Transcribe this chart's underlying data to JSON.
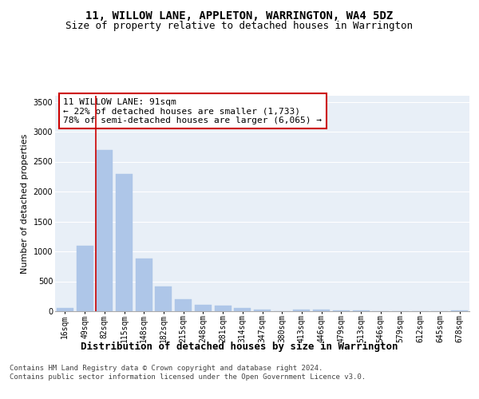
{
  "title": "11, WILLOW LANE, APPLETON, WARRINGTON, WA4 5DZ",
  "subtitle": "Size of property relative to detached houses in Warrington",
  "xlabel": "Distribution of detached houses by size in Warrington",
  "ylabel": "Number of detached properties",
  "categories": [
    "16sqm",
    "49sqm",
    "82sqm",
    "115sqm",
    "148sqm",
    "182sqm",
    "215sqm",
    "248sqm",
    "281sqm",
    "314sqm",
    "347sqm",
    "380sqm",
    "413sqm",
    "446sqm",
    "479sqm",
    "513sqm",
    "546sqm",
    "579sqm",
    "612sqm",
    "645sqm",
    "678sqm"
  ],
  "values": [
    50,
    1090,
    2700,
    2290,
    880,
    410,
    195,
    110,
    100,
    55,
    30,
    0,
    30,
    25,
    15,
    10,
    5,
    0,
    0,
    0,
    20
  ],
  "bar_color": "#aec6e8",
  "bar_edgecolor": "#aec6e8",
  "vline_color": "#cc0000",
  "vline_x_idx": 2,
  "annotation_text": "11 WILLOW LANE: 91sqm\n← 22% of detached houses are smaller (1,733)\n78% of semi-detached houses are larger (6,065) →",
  "annotation_box_color": "#ffffff",
  "annotation_box_edgecolor": "#cc0000",
  "ylim": [
    0,
    3600
  ],
  "yticks": [
    0,
    500,
    1000,
    1500,
    2000,
    2500,
    3000,
    3500
  ],
  "footer_text": "Contains HM Land Registry data © Crown copyright and database right 2024.\nContains public sector information licensed under the Open Government Licence v3.0.",
  "bg_color": "#e8eff7",
  "grid_color": "#ffffff",
  "title_fontsize": 10,
  "subtitle_fontsize": 9,
  "xlabel_fontsize": 9,
  "ylabel_fontsize": 8,
  "tick_fontsize": 7,
  "annotation_fontsize": 8,
  "footer_fontsize": 6.5
}
